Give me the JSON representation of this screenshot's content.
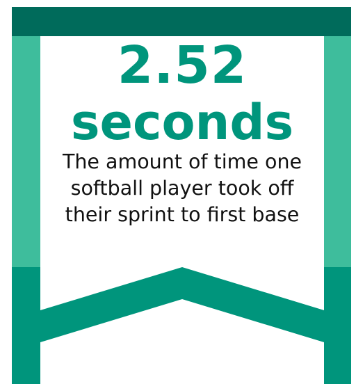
{
  "stat": {
    "value": "2.52",
    "unit": "seconds",
    "description_lines": [
      "The amount of time one",
      "softball player took off",
      "their sprint to first base"
    ]
  },
  "colors": {
    "top_bar": "#006b5b",
    "upper_side": "#3ebd9c",
    "lower_side": "#00957c",
    "headline_text": "#00957c",
    "body_text": "#111111",
    "background": "#ffffff"
  },
  "icon": "ribbon-banner-shape"
}
